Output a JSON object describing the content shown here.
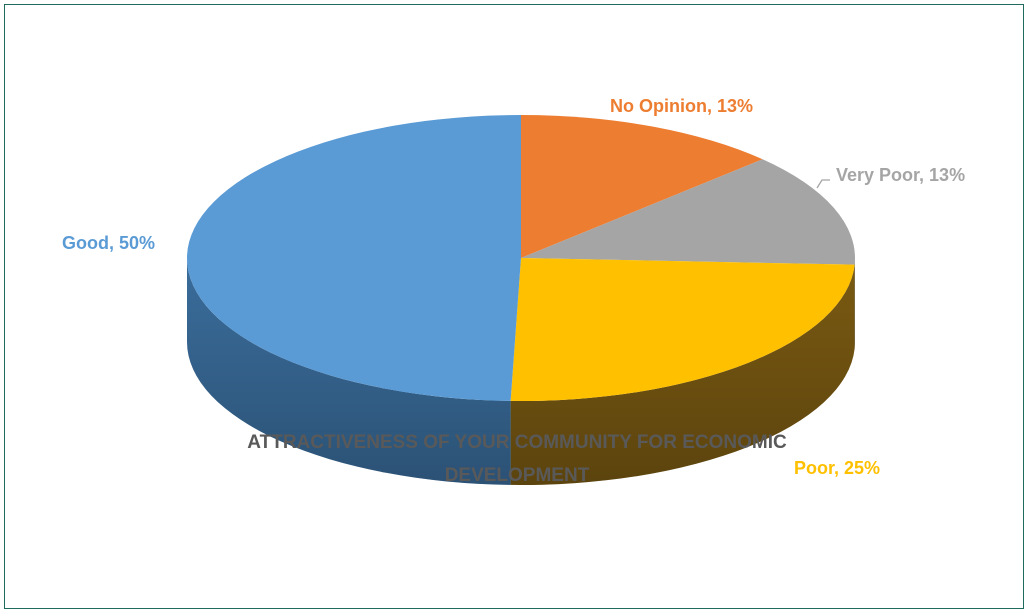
{
  "chart_data": {
    "type": "pie",
    "title": "ATTRACTIVENESS OF YOUR COMMUNITY FOR ECONOMIC DEVELOPMENT",
    "title_lines": [
      "ATTRACTIVENESS OF YOUR COMMUNITY FOR ECONOMIC",
      "DEVELOPMENT"
    ],
    "three_d": true,
    "slices": [
      {
        "label": "No Opinion",
        "value": 13,
        "text": "No Opinion, 13%",
        "color": "#ED7D31",
        "dark": "#a4551f"
      },
      {
        "label": "Very Poor",
        "value": 13,
        "text": "Very Poor, 13%",
        "color": "#A5A5A5",
        "dark": "#6e6e6e"
      },
      {
        "label": "Poor",
        "value": 25,
        "text": "Poor, 25%",
        "color": "#FFC000",
        "dark": "#7a5a12"
      },
      {
        "label": "Good",
        "value": 50,
        "text": "Good, 50%",
        "color": "#5B9BD5",
        "dark": "#3a6d9c"
      }
    ]
  }
}
